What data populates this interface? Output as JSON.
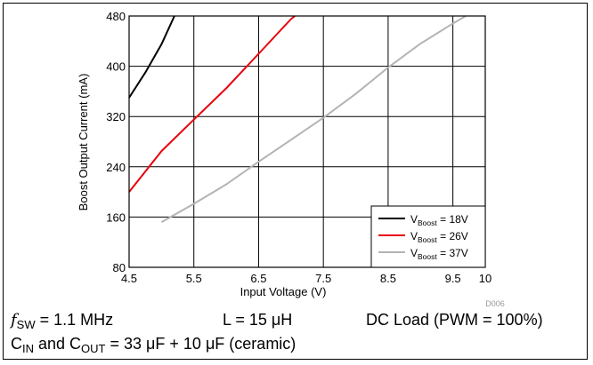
{
  "chart_data": {
    "type": "line",
    "xlabel": "Input Voltage (V)",
    "ylabel": "Boost Output Current (mA)",
    "xlim": [
      4.5,
      10
    ],
    "ylim": [
      80,
      480
    ],
    "xticks": [
      4.5,
      5.5,
      6.5,
      7.5,
      8.5,
      9.5,
      10
    ],
    "xtick_labels": [
      "4.5",
      "5.5",
      "6.5",
      "7.5",
      "8.5",
      "9.5",
      "10"
    ],
    "yticks": [
      80,
      160,
      240,
      320,
      400,
      480
    ],
    "ytick_labels": [
      "80",
      "160",
      "240",
      "320",
      "400",
      "480"
    ],
    "grid": true,
    "legend_position": "bottom-right",
    "watermark": "D006",
    "series": [
      {
        "name": "V",
        "sub": "Boost",
        "suffix": " = 18V",
        "color": "#000000",
        "x": [
          4.5,
          4.75,
          5.0,
          5.2
        ],
        "y": [
          350,
          390,
          435,
          480
        ]
      },
      {
        "name": "V",
        "sub": "Boost",
        "suffix": " = 26V",
        "color": "#e8000b",
        "x": [
          4.5,
          5.0,
          5.5,
          6.0,
          6.5,
          7.0,
          7.06
        ],
        "y": [
          200,
          265,
          315,
          365,
          420,
          475,
          480
        ]
      },
      {
        "name": "V",
        "sub": "Boost",
        "suffix": " = 37V",
        "color": "#b4b4b4",
        "x": [
          5.0,
          5.5,
          6.0,
          6.5,
          7.0,
          7.5,
          8.0,
          8.5,
          9.0,
          9.5,
          9.7
        ],
        "y": [
          152,
          181,
          212,
          248,
          283,
          318,
          356,
          398,
          436,
          468,
          480
        ]
      }
    ]
  },
  "captions": {
    "fsw_sym": "f",
    "fsw_sub": "SW",
    "fsw_val": " = 1.1 MHz",
    "inductor": "L = 15 μH",
    "dc_load": "DC Load (PWM = 100%)",
    "cap_pre": "C",
    "cap_in_sub": "IN",
    "cap_and": " and C",
    "cap_out_sub": "OUT",
    "cap_val": " = 33 μF + 10 μF (ceramic)"
  }
}
